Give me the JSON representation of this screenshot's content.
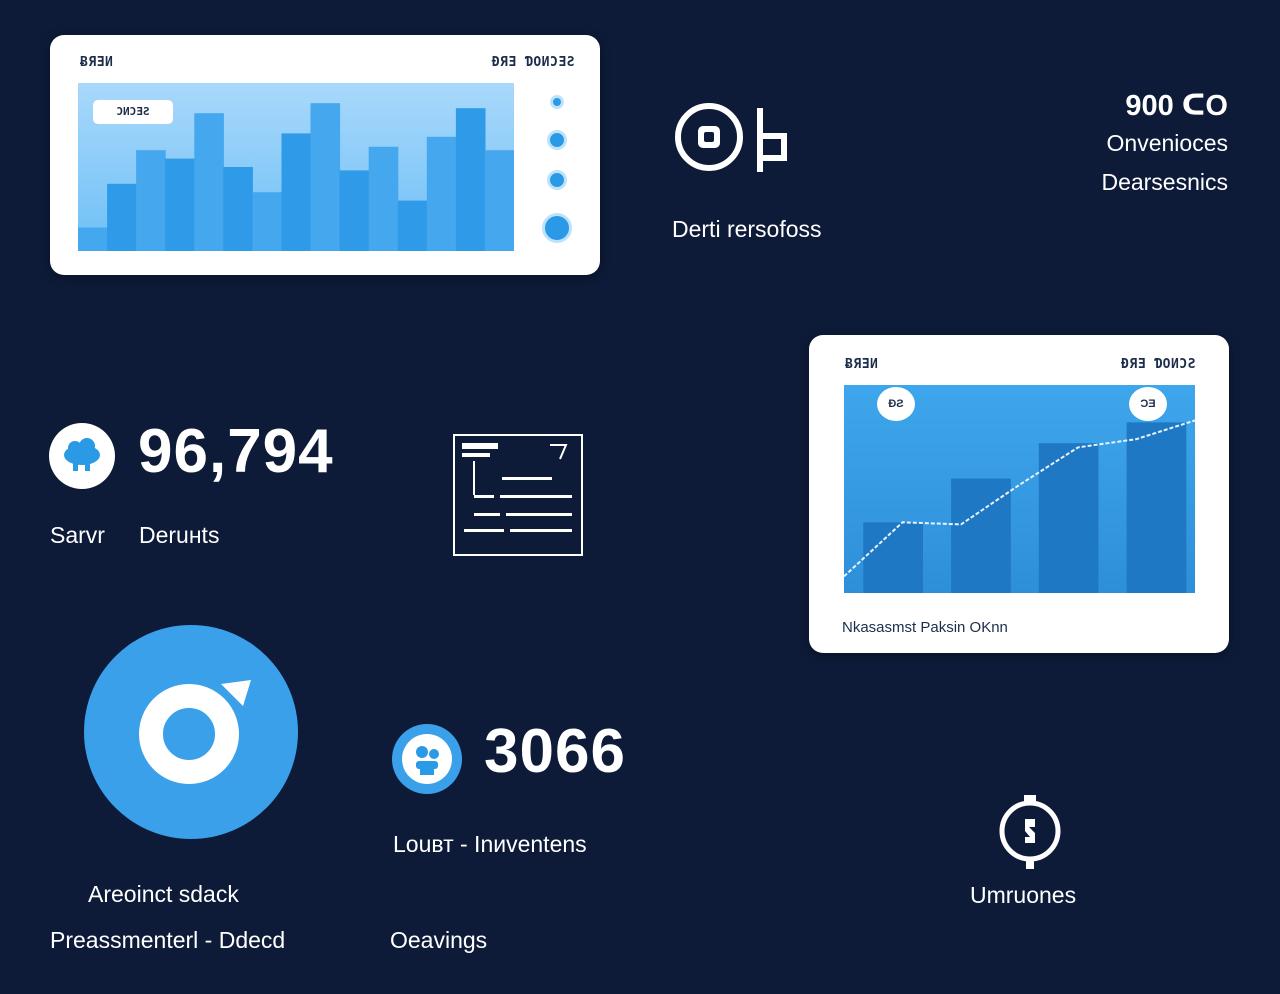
{
  "card1": {
    "header_left": "ɃЯƎИ",
    "header_right": "ƉЯƎ ƊОИƆƎƧ",
    "chip": "ƆИƆƎƧ",
    "bars": [
      0.14,
      0.4,
      0.6,
      0.55,
      0.82,
      0.5,
      0.35,
      0.7,
      0.88,
      0.48,
      0.62,
      0.3,
      0.68,
      0.85,
      0.6
    ]
  },
  "top_right": {
    "value": "900 ᑕO",
    "line1": "Onvenioces",
    "line2": "Dearsesnics"
  },
  "middle_caption": "Derti rersofoss",
  "stat1": {
    "value": "96,794",
    "label_a": "Sarvr",
    "label_b": "Deruнts"
  },
  "card2": {
    "header_left": "ɃЯƎИ",
    "header_right": "ƉЯƎ ƊOИƆƧ",
    "badge_left": "ƉƧ",
    "badge_right": "ƆƎ",
    "footer": "Nkasasmst Paksin OKnn",
    "bars": [
      0.34,
      0.55,
      0.72,
      0.82
    ],
    "line": [
      0.08,
      0.34,
      0.33,
      0.52,
      0.7,
      0.74,
      0.83
    ]
  },
  "stat2": {
    "value": "3066",
    "label": "Louвт  - Inиventens",
    "sub": "Oeavings"
  },
  "left_bottom": {
    "line1": "Areoinct sdack",
    "line2": "Preassmenterl - Ddecd"
  },
  "icon_caption": "Umruones",
  "colors": {
    "background": "#0d1b38",
    "accent": "#3aa0ea",
    "card": "#ffffff"
  }
}
